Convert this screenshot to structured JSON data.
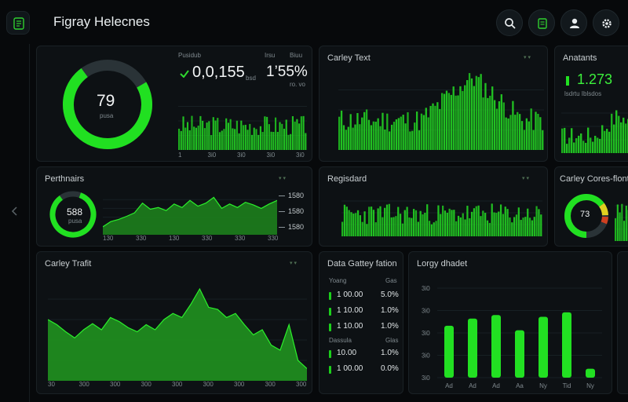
{
  "app": {
    "title": "Figray Helecnes"
  },
  "header_icons": [
    "search-icon",
    "document-icon",
    "user-icon",
    "settings-icon"
  ],
  "accent": "#22e022",
  "card_gauge": {
    "value": "79",
    "sublabel": "pusa",
    "stat_label_1": "Pusidub",
    "stat_label_2": "Irsu",
    "stat_label_3": "Biuu",
    "stat_value": "0,0,155",
    "stat_unit": "bsd",
    "stat_pct": "1’55%",
    "stat_pct_sub": "ro. vo",
    "x_ticks": [
      "1",
      "3i0",
      "3i0",
      "3i0",
      "3i0"
    ]
  },
  "card_center_top": {
    "title": "Carley Text",
    "x_ticks": [
      "1",
      "3i0",
      "3i0",
      "3i0",
      "3i0",
      "3i0"
    ]
  },
  "card_right_top": {
    "title": "Anatants",
    "value": "1.273",
    "sub": "lsdrtu Iblsdos"
  },
  "card_perthn": {
    "title": "Perthnairs",
    "gauge_value": "588",
    "gauge_sub": "pusa",
    "legend": [
      "1580",
      "1580",
      "1580"
    ],
    "x_ticks": [
      "130",
      "330",
      "130",
      "330",
      "330",
      "330"
    ]
  },
  "card_registry": {
    "title": "Regisdard",
    "x_ticks": [
      "140",
      "3i0",
      "3i0",
      "3i0",
      "3i0",
      "3i0"
    ]
  },
  "card_cores": {
    "title": "Carley Cores-flont",
    "gauge_value": "73"
  },
  "card_traffic": {
    "title": "Carley Trafit",
    "x_ticks": [
      "30",
      "300",
      "300",
      "300",
      "300",
      "300",
      "300",
      "300",
      "300"
    ]
  },
  "card_table": {
    "title": "Data Gattey fation",
    "header_left": "Yoang",
    "header_right": "Gas",
    "rows": [
      {
        "left": "1 00.00",
        "right": "5.0%"
      },
      {
        "left": "1 10.00",
        "right": "1.0%"
      },
      {
        "left": "1 10.00",
        "right": "1.0%"
      }
    ],
    "header2_left": "Dassula",
    "header2_right": "Glas",
    "rows2": [
      {
        "left": "10.00",
        "right": "1.0%"
      },
      {
        "left": "1 00.00",
        "right": "0.0%"
      }
    ]
  },
  "card_bars": {
    "title": "Lorgy dhadet",
    "y_ticks": [
      "3i0",
      "3i0",
      "3i0",
      "3i0",
      "3i0"
    ],
    "x_ticks": [
      "Ad",
      "Ad",
      "Ad",
      "Aa",
      "Ny",
      "Tid",
      "Ny"
    ],
    "values": [
      0.58,
      0.66,
      0.7,
      0.53,
      0.68,
      0.73,
      0.1
    ]
  }
}
